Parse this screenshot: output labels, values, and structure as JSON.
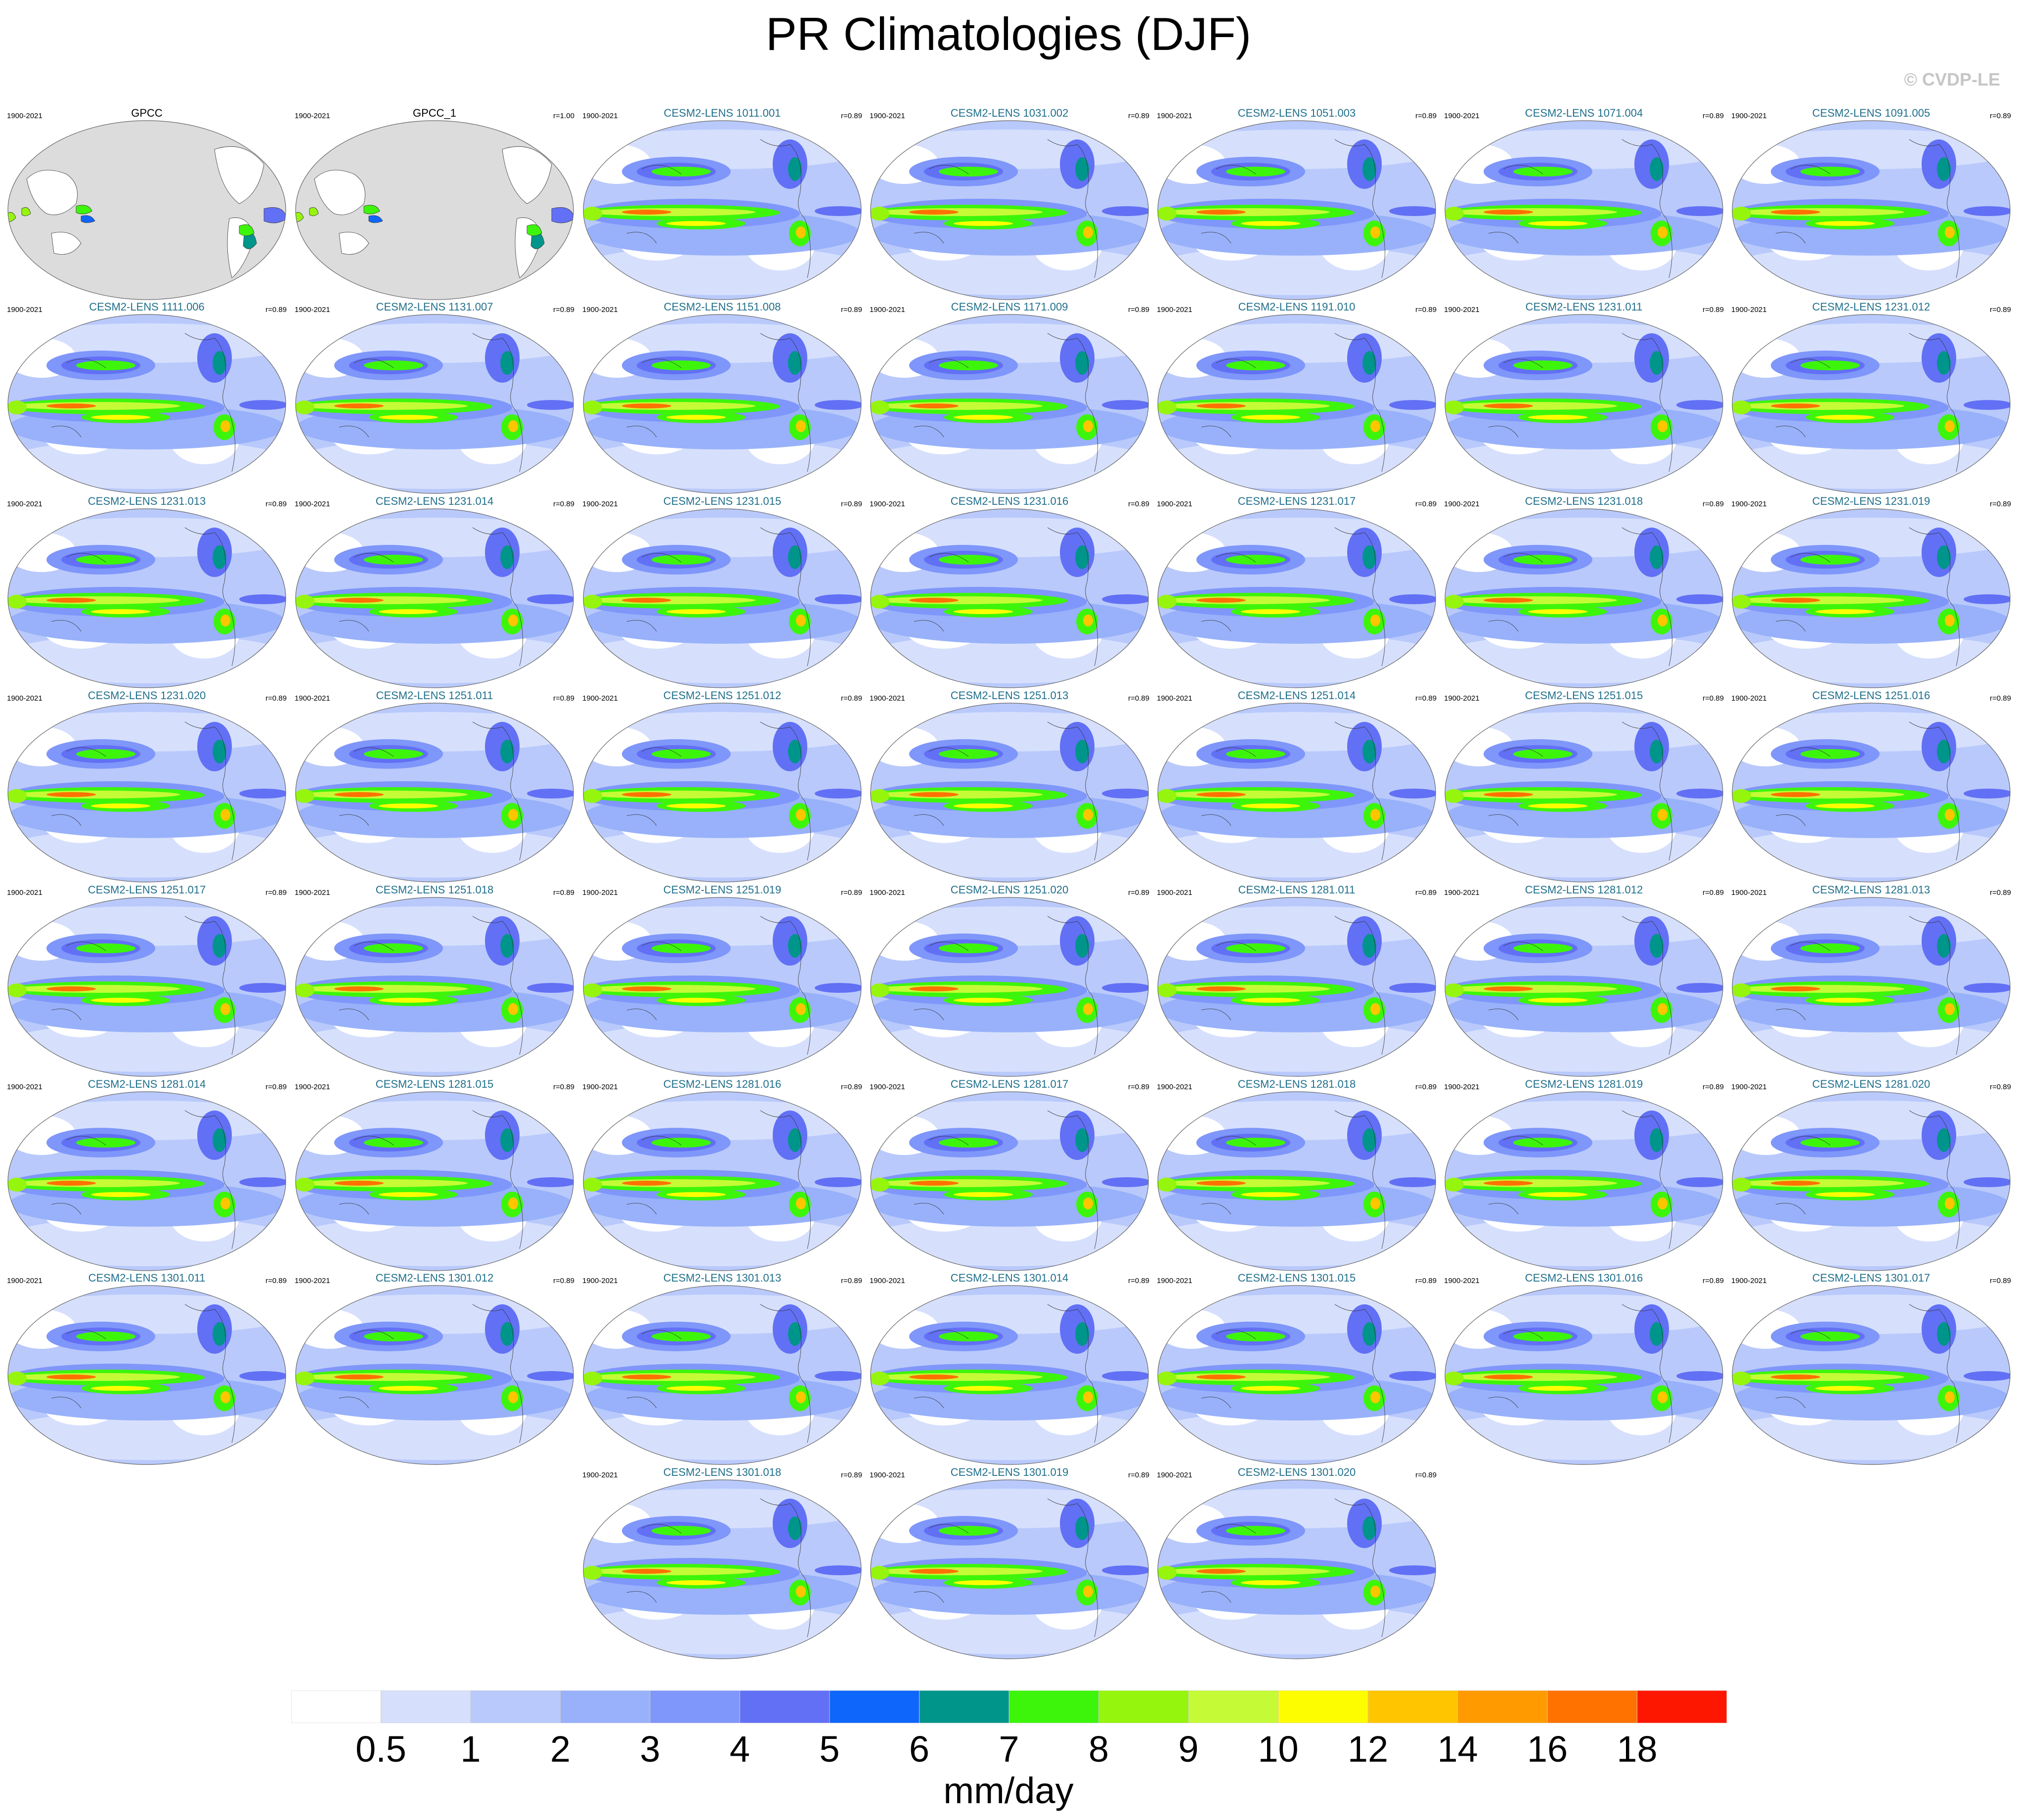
{
  "title": "PR Climatologies (DJF)",
  "watermark": "© CVDP-LE",
  "panels": [
    {
      "name": "GPCC",
      "period": "1900-2021",
      "corr": "",
      "obs": true
    },
    {
      "name": "GPCC_1",
      "period": "1900-2021",
      "corr": "r=1.00",
      "obs": true
    },
    {
      "name": "CESM2-LENS 1011.001",
      "period": "1900-2021",
      "corr": "r=0.89"
    },
    {
      "name": "CESM2-LENS 1031.002",
      "period": "1900-2021",
      "corr": "r=0.89"
    },
    {
      "name": "CESM2-LENS 1051.003",
      "period": "1900-2021",
      "corr": "r=0.89"
    },
    {
      "name": "CESM2-LENS 1071.004",
      "period": "1900-2021",
      "corr": "r=0.89"
    },
    {
      "name": "CESM2-LENS 1091.005",
      "period": "1900-2021",
      "corr": "r=0.89"
    },
    {
      "name": "CESM2-LENS 1111.006",
      "period": "1900-2021",
      "corr": "r=0.89"
    },
    {
      "name": "CESM2-LENS 1131.007",
      "period": "1900-2021",
      "corr": "r=0.89"
    },
    {
      "name": "CESM2-LENS 1151.008",
      "period": "1900-2021",
      "corr": "r=0.89"
    },
    {
      "name": "CESM2-LENS 1171.009",
      "period": "1900-2021",
      "corr": "r=0.89"
    },
    {
      "name": "CESM2-LENS 1191.010",
      "period": "1900-2021",
      "corr": "r=0.89"
    },
    {
      "name": "CESM2-LENS 1231.011",
      "period": "1900-2021",
      "corr": "r=0.89"
    },
    {
      "name": "CESM2-LENS 1231.012",
      "period": "1900-2021",
      "corr": "r=0.89"
    },
    {
      "name": "CESM2-LENS 1231.013",
      "period": "1900-2021",
      "corr": "r=0.89"
    },
    {
      "name": "CESM2-LENS 1231.014",
      "period": "1900-2021",
      "corr": "r=0.89"
    },
    {
      "name": "CESM2-LENS 1231.015",
      "period": "1900-2021",
      "corr": "r=0.89"
    },
    {
      "name": "CESM2-LENS 1231.016",
      "period": "1900-2021",
      "corr": "r=0.89"
    },
    {
      "name": "CESM2-LENS 1231.017",
      "period": "1900-2021",
      "corr": "r=0.89"
    },
    {
      "name": "CESM2-LENS 1231.018",
      "period": "1900-2021",
      "corr": "r=0.89"
    },
    {
      "name": "CESM2-LENS 1231.019",
      "period": "1900-2021",
      "corr": "r=0.89"
    },
    {
      "name": "CESM2-LENS 1231.020",
      "period": "1900-2021",
      "corr": "r=0.89"
    },
    {
      "name": "CESM2-LENS 1251.011",
      "period": "1900-2021",
      "corr": "r=0.89"
    },
    {
      "name": "CESM2-LENS 1251.012",
      "period": "1900-2021",
      "corr": "r=0.89"
    },
    {
      "name": "CESM2-LENS 1251.013",
      "period": "1900-2021",
      "corr": "r=0.89"
    },
    {
      "name": "CESM2-LENS 1251.014",
      "period": "1900-2021",
      "corr": "r=0.89"
    },
    {
      "name": "CESM2-LENS 1251.015",
      "period": "1900-2021",
      "corr": "r=0.89"
    },
    {
      "name": "CESM2-LENS 1251.016",
      "period": "1900-2021",
      "corr": "r=0.89"
    },
    {
      "name": "CESM2-LENS 1251.017",
      "period": "1900-2021",
      "corr": "r=0.89"
    },
    {
      "name": "CESM2-LENS 1251.018",
      "period": "1900-2021",
      "corr": "r=0.89"
    },
    {
      "name": "CESM2-LENS 1251.019",
      "period": "1900-2021",
      "corr": "r=0.89"
    },
    {
      "name": "CESM2-LENS 1251.020",
      "period": "1900-2021",
      "corr": "r=0.89"
    },
    {
      "name": "CESM2-LENS 1281.011",
      "period": "1900-2021",
      "corr": "r=0.89"
    },
    {
      "name": "CESM2-LENS 1281.012",
      "period": "1900-2021",
      "corr": "r=0.89"
    },
    {
      "name": "CESM2-LENS 1281.013",
      "period": "1900-2021",
      "corr": "r=0.89"
    },
    {
      "name": "CESM2-LENS 1281.014",
      "period": "1900-2021",
      "corr": "r=0.89"
    },
    {
      "name": "CESM2-LENS 1281.015",
      "period": "1900-2021",
      "corr": "r=0.89"
    },
    {
      "name": "CESM2-LENS 1281.016",
      "period": "1900-2021",
      "corr": "r=0.89"
    },
    {
      "name": "CESM2-LENS 1281.017",
      "period": "1900-2021",
      "corr": "r=0.89"
    },
    {
      "name": "CESM2-LENS 1281.018",
      "period": "1900-2021",
      "corr": "r=0.89"
    },
    {
      "name": "CESM2-LENS 1281.019",
      "period": "1900-2021",
      "corr": "r=0.89"
    },
    {
      "name": "CESM2-LENS 1281.020",
      "period": "1900-2021",
      "corr": "r=0.89"
    },
    {
      "name": "CESM2-LENS 1301.011",
      "period": "1900-2021",
      "corr": "r=0.89"
    },
    {
      "name": "CESM2-LENS 1301.012",
      "period": "1900-2021",
      "corr": "r=0.89"
    },
    {
      "name": "CESM2-LENS 1301.013",
      "period": "1900-2021",
      "corr": "r=0.89"
    },
    {
      "name": "CESM2-LENS 1301.014",
      "period": "1900-2021",
      "corr": "r=0.89"
    },
    {
      "name": "CESM2-LENS 1301.015",
      "period": "1900-2021",
      "corr": "r=0.89"
    },
    {
      "name": "CESM2-LENS 1301.016",
      "period": "1900-2021",
      "corr": "r=0.89"
    },
    {
      "name": "CESM2-LENS 1301.017",
      "period": "1900-2021",
      "corr": "r=0.89"
    },
    {
      "name": "CESM2-LENS 1301.018",
      "period": "1900-2021",
      "corr": "r=0.89"
    },
    {
      "name": "CESM2-LENS 1301.019",
      "period": "1900-2021",
      "corr": "r=0.89"
    },
    {
      "name": "CESM2-LENS 1301.020",
      "period": "1900-2021",
      "corr": "r=0.89"
    }
  ],
  "colorbar": {
    "labels": [
      "0.5",
      "1",
      "2",
      "3",
      "4",
      "5",
      "6",
      "7",
      "8",
      "9",
      "10",
      "12",
      "14",
      "16",
      "18"
    ],
    "colors": [
      "#ffffff",
      "#d6e0fd",
      "#b9c9fb",
      "#98b1fa",
      "#7f96fa",
      "#6270f5",
      "#0f66fb",
      "#00958a",
      "#3df50b",
      "#95f50d",
      "#c5fb36",
      "#fefd00",
      "#ffc600",
      "#ff9b00",
      "#ff7200",
      "#fe1700"
    ],
    "units": "mm/day"
  },
  "land_color": "#dcdcdc"
}
